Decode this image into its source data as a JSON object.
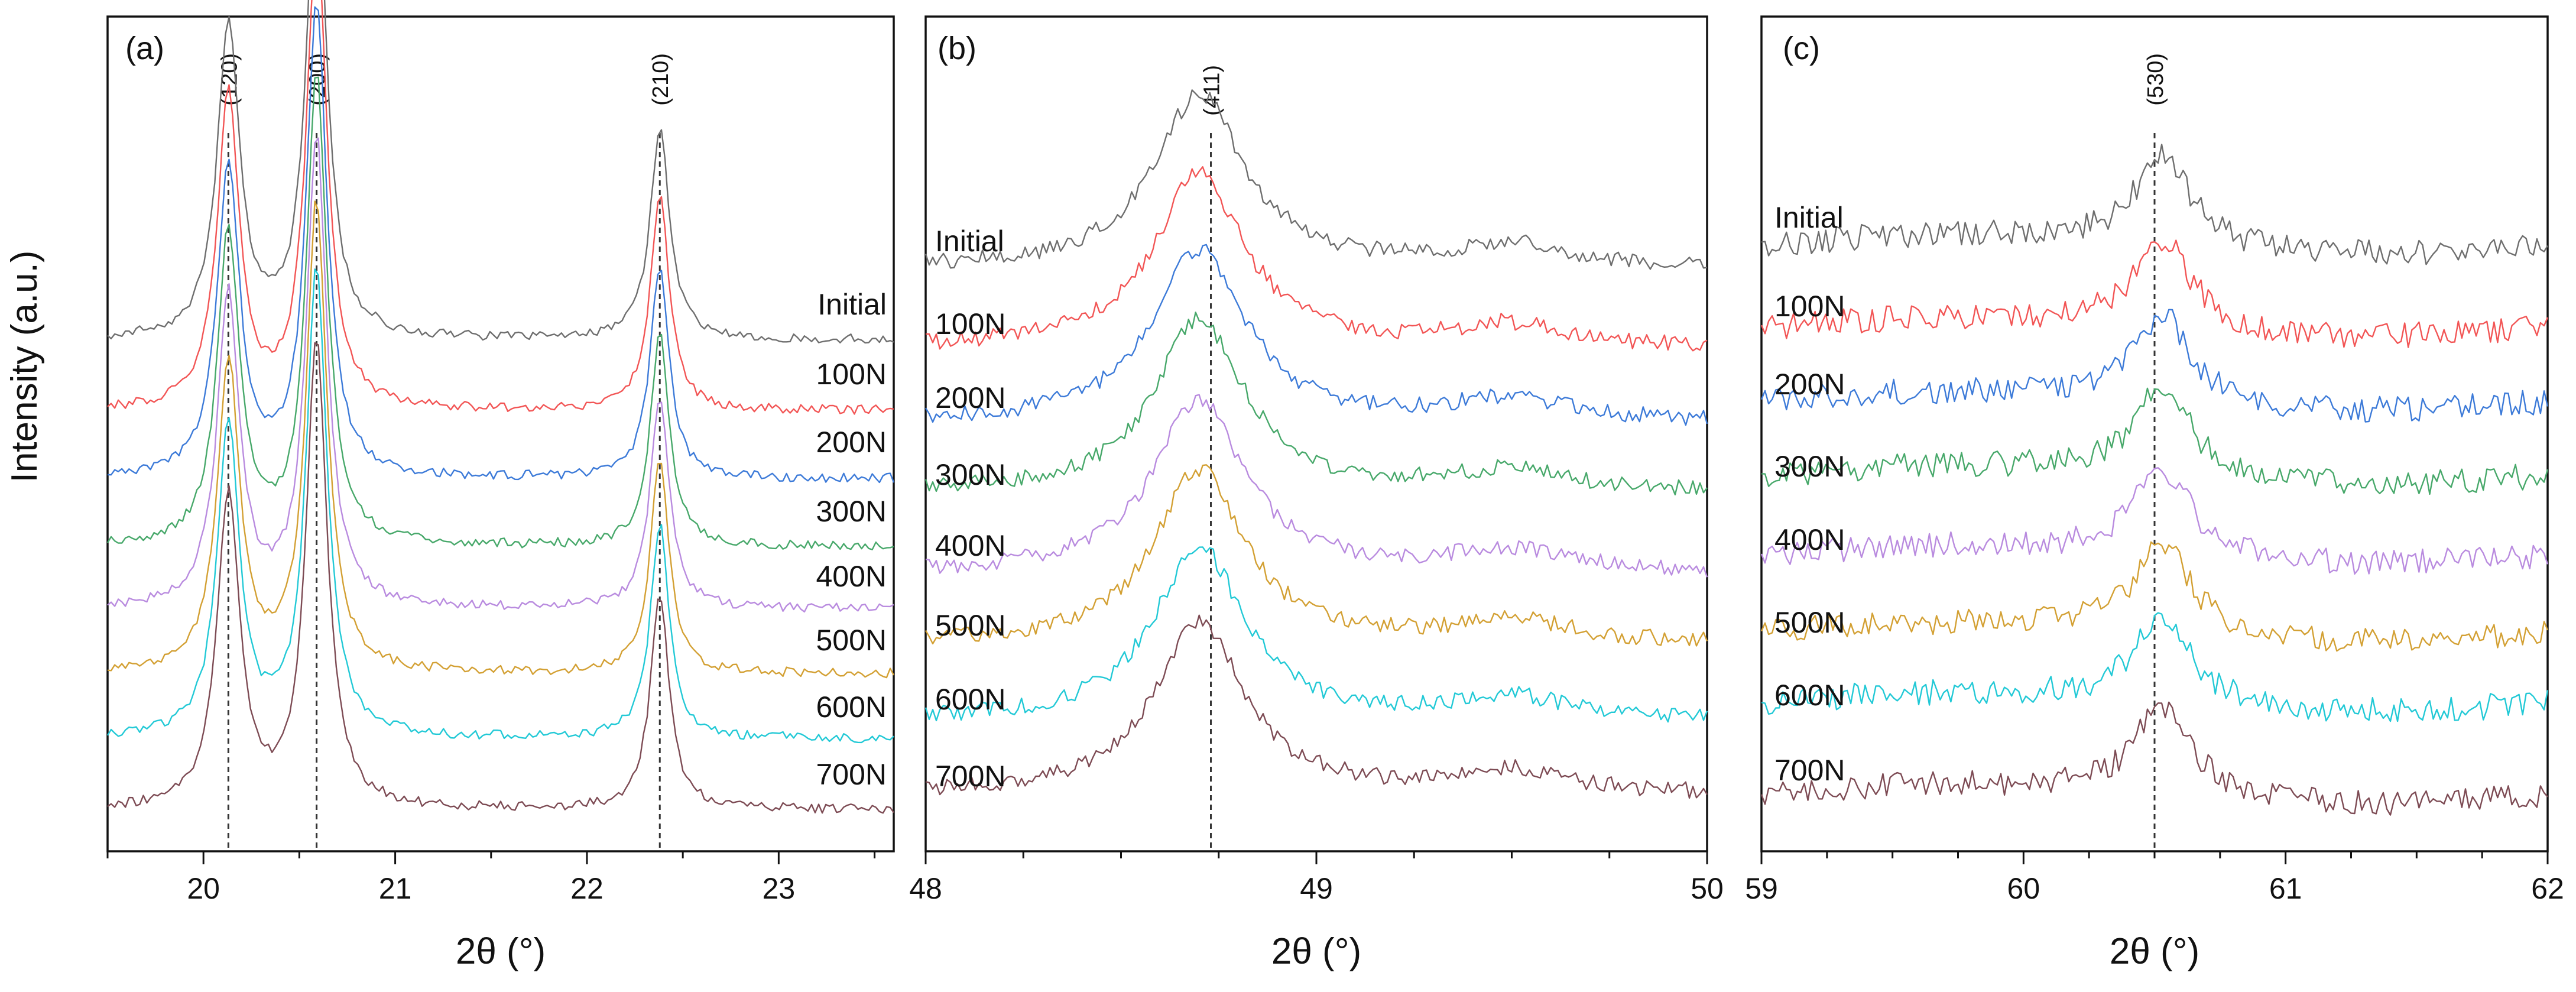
{
  "y_axis_label": "Intensity (a.u.)",
  "series_colors": {
    "Initial": "#6e6e6e",
    "100N": "#f25555",
    "200N": "#3c7ad8",
    "300N": "#47a86a",
    "400N": "#b98bdf",
    "500N": "#d3a033",
    "600N": "#22c9d6",
    "700N": "#7d4b54"
  },
  "chart_data": [
    {
      "type": "line",
      "panel": "(a)",
      "xlabel": "2θ (°)",
      "ylabel": "Intensity (a.u.)",
      "xlim": [
        19.5,
        23.6
      ],
      "xticks": [
        20,
        21,
        22,
        23
      ],
      "series": [
        "Initial",
        "100N",
        "200N",
        "300N",
        "400N",
        "500N",
        "600N",
        "700N"
      ],
      "peaks": [
        {
          "label": "(120)",
          "pos": 20.13,
          "height": 1.0,
          "width": 0.07
        },
        {
          "label": "(200)",
          "pos": 20.59,
          "height": 1.5,
          "width": 0.065
        },
        {
          "label": "(210)",
          "pos": 22.38,
          "height": 0.68,
          "width": 0.06
        }
      ],
      "reference_lines": [
        {
          "x": 20.13,
          "label": "(120)"
        },
        {
          "x": 20.59,
          "label": "(200)"
        },
        {
          "x": 22.38,
          "label": "(210)"
        }
      ]
    },
    {
      "type": "line",
      "panel": "(b)",
      "xlabel": "2θ (°)",
      "ylabel": "",
      "xlim": [
        48,
        50
      ],
      "xticks": [
        48,
        49,
        50
      ],
      "series": [
        "Initial",
        "100N",
        "200N",
        "300N",
        "400N",
        "500N",
        "600N",
        "700N"
      ],
      "peaks": [
        {
          "label": "(411)",
          "pos": 48.7,
          "height": 0.95,
          "width": 0.14
        }
      ],
      "reference_lines": [
        {
          "x": 48.73,
          "label": "(411)"
        }
      ]
    },
    {
      "type": "line",
      "panel": "(c)",
      "xlabel": "2θ (°)",
      "ylabel": "",
      "xlim": [
        59,
        62
      ],
      "xticks": [
        59,
        60,
        61,
        62
      ],
      "series": [
        "Initial",
        "100N",
        "200N",
        "300N",
        "400N",
        "500N",
        "600N",
        "700N"
      ],
      "peaks": [
        {
          "label": "(530)",
          "pos": 60.53,
          "height": 0.75,
          "width": 0.13
        }
      ],
      "reference_lines": [
        {
          "x": 60.5,
          "label": "(530)"
        }
      ]
    }
  ]
}
